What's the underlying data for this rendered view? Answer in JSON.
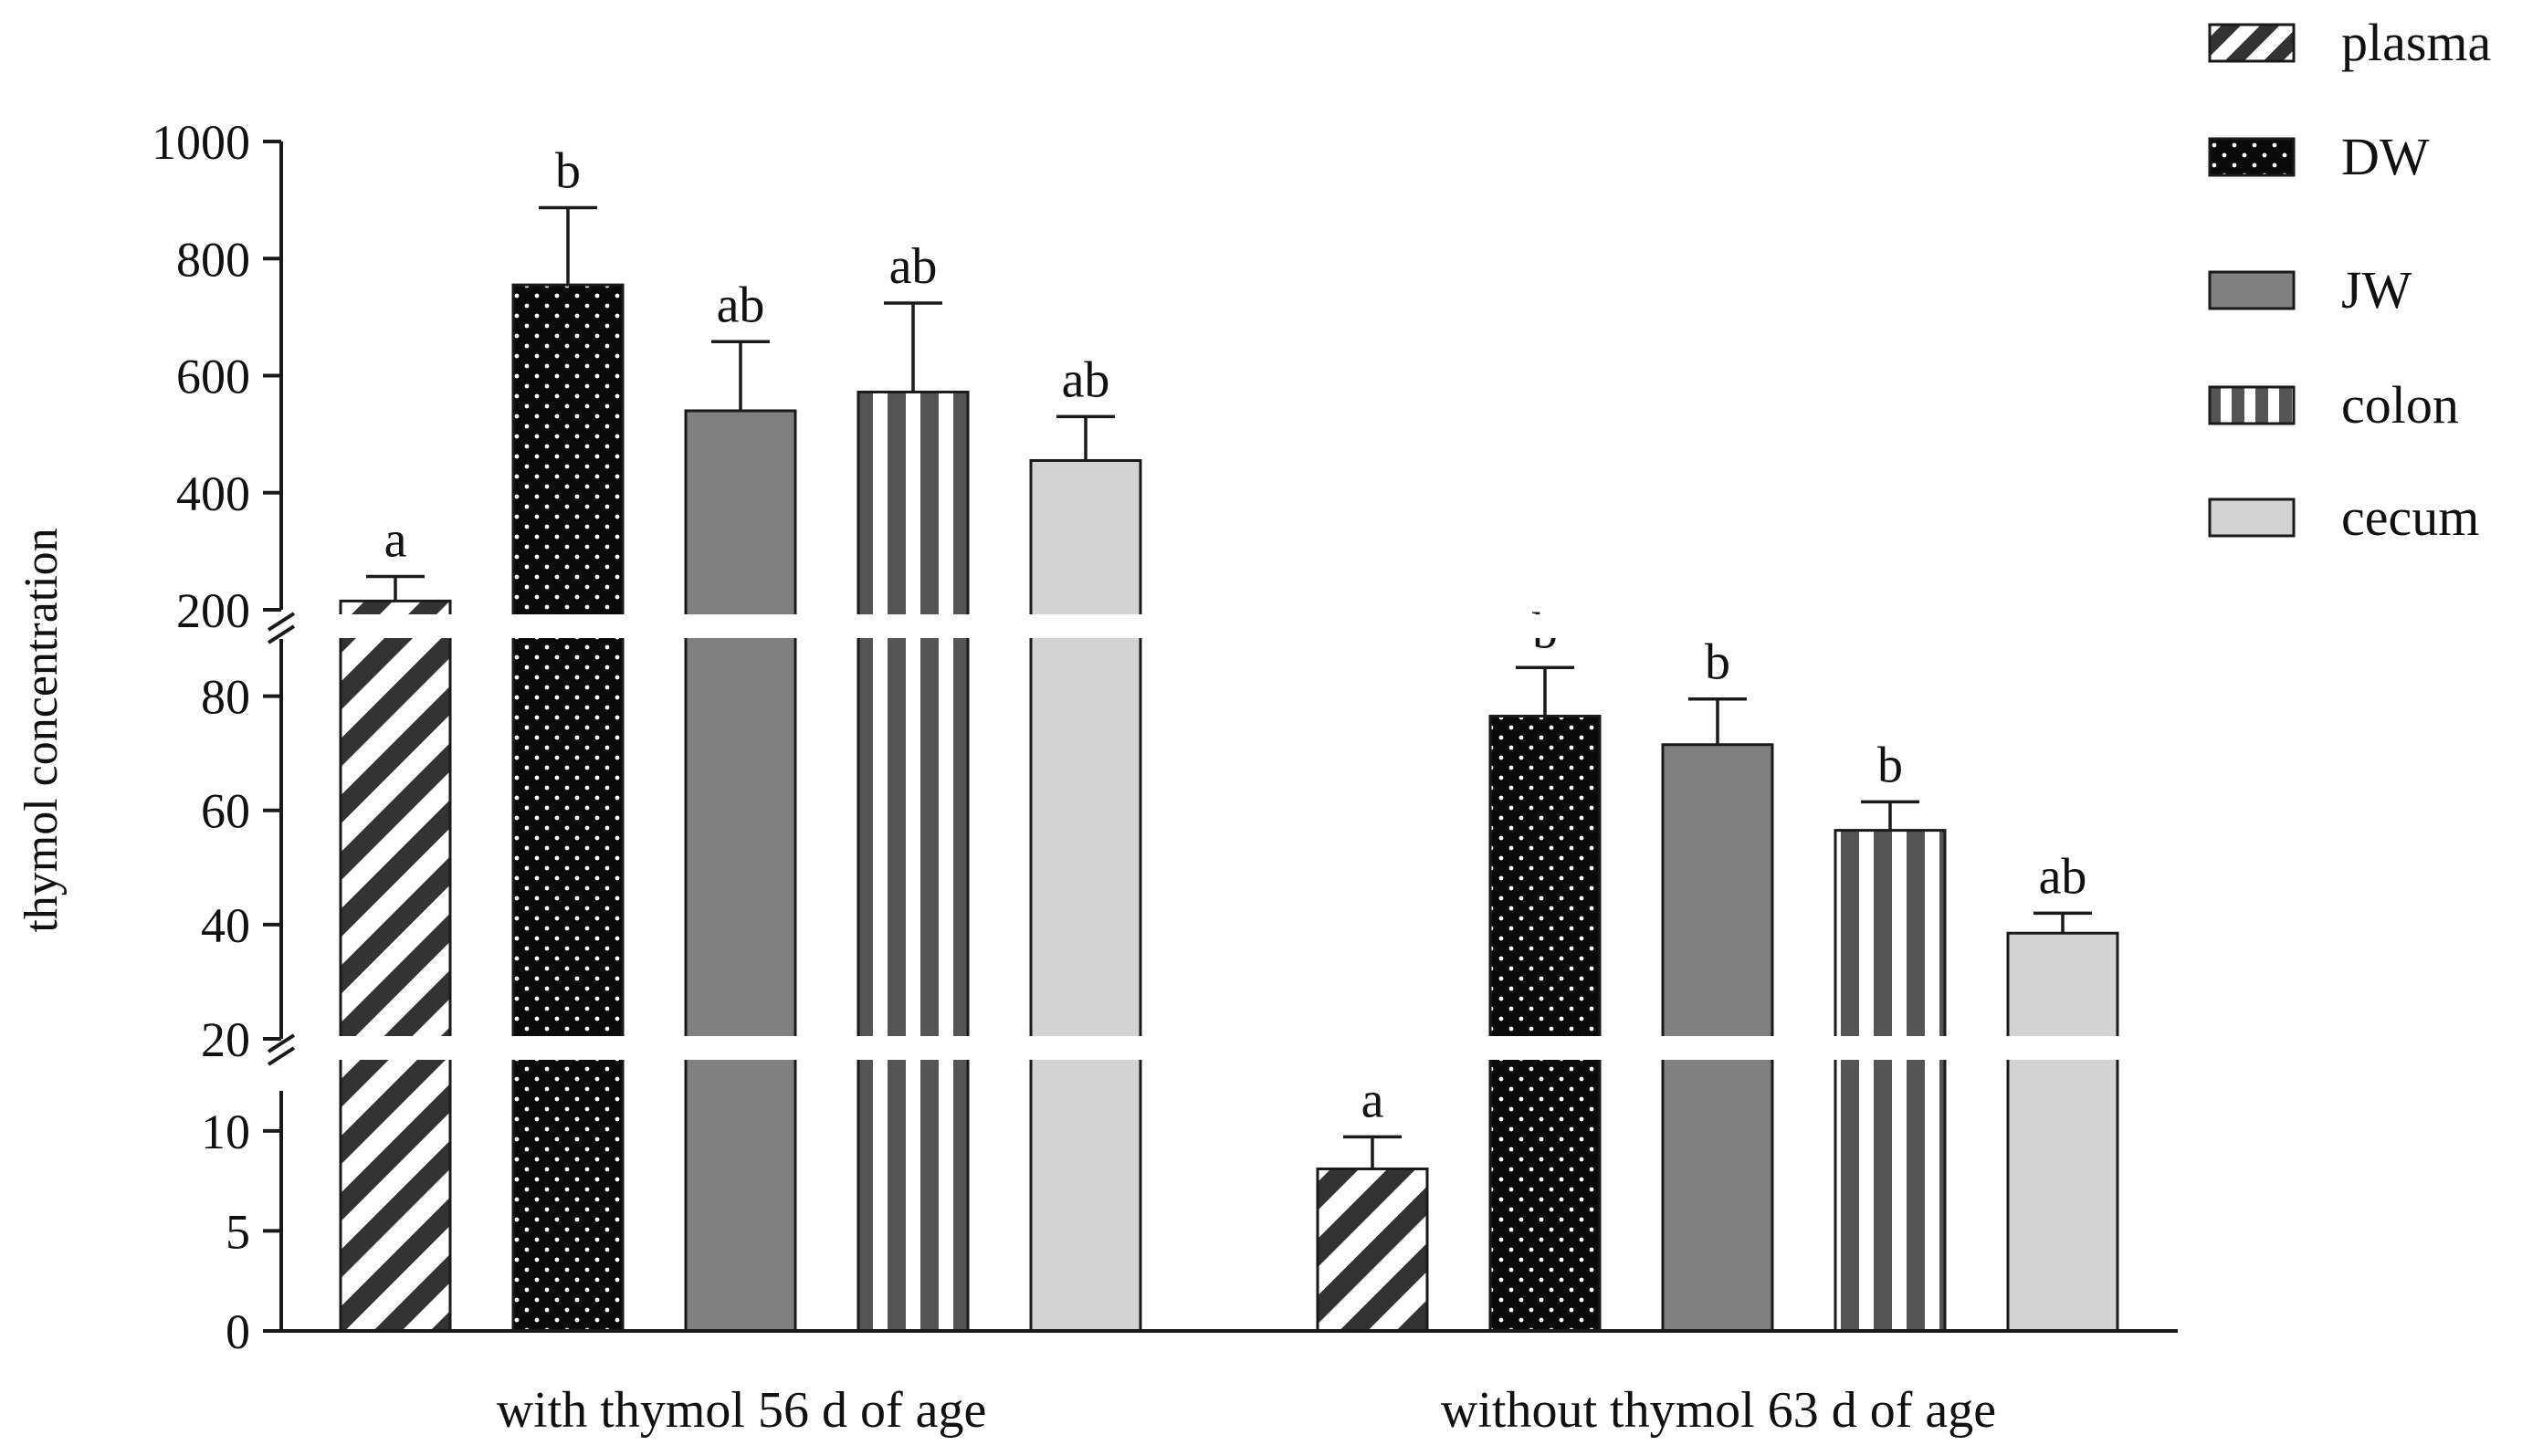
{
  "chart_data": {
    "type": "bar",
    "title": "",
    "ylabel": "thymol concentration",
    "xlabel": "",
    "y_axis": {
      "scale": "broken",
      "segments": [
        {
          "range": [
            0,
            12
          ],
          "ticks": [
            0,
            5,
            10
          ]
        },
        {
          "range": [
            20,
            90
          ],
          "ticks": [
            20,
            40,
            60,
            80
          ]
        },
        {
          "range": [
            200,
            1000
          ],
          "ticks": [
            200,
            400,
            600,
            800,
            1000
          ]
        }
      ]
    },
    "categories": [
      "with thymol 56 d of age",
      "without thymol 63 d of age"
    ],
    "series": [
      {
        "name": "plasma",
        "pattern": "diagonal-stripes",
        "values": [
          215,
          8.1
        ],
        "errors": [
          42,
          1.6
        ],
        "letters": [
          "a",
          "a"
        ]
      },
      {
        "name": "DW",
        "pattern": "dots",
        "values": [
          755,
          76.5
        ],
        "errors": [
          132,
          8.5
        ],
        "letters": [
          "b",
          "b"
        ]
      },
      {
        "name": "JW",
        "pattern": "solid-gray",
        "values": [
          540,
          71.5
        ],
        "errors": [
          118,
          8
        ],
        "letters": [
          "ab",
          "b"
        ]
      },
      {
        "name": "colon",
        "pattern": "vertical-stripes",
        "values": [
          572,
          56.5
        ],
        "errors": [
          152,
          5
        ],
        "letters": [
          "ab",
          "b"
        ]
      },
      {
        "name": "cecum",
        "pattern": "light-gray",
        "values": [
          455,
          38.5
        ],
        "errors": [
          75,
          3.5
        ],
        "letters": [
          "ab",
          "ab"
        ]
      }
    ],
    "legend": {
      "position": "top-right"
    },
    "grid": false,
    "colors": {
      "axis": "#1a1a1a",
      "bar_dark": "#333333",
      "bar_gray": "#808080",
      "bar_light": "#d3d3d3",
      "pattern_light": "#ffffff"
    }
  }
}
